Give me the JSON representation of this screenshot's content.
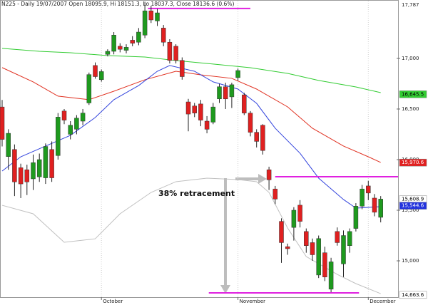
{
  "chart_data": {
    "type": "candlestick",
    "title": "N225 - Daily 19/07/2007 Open 18095.9, Hi 18151.3, Lo 18037.3, Close 18136.6 (0.6%)",
    "top_label": "17,787",
    "annotation": "38% retracement",
    "categories": [
      null,
      null,
      null,
      null,
      null,
      null,
      null,
      null,
      null,
      null,
      null,
      null,
      null,
      null,
      null,
      null,
      "October",
      null,
      null,
      null,
      null,
      null,
      null,
      null,
      null,
      null,
      null,
      null,
      null,
      null,
      null,
      null,
      null,
      null,
      null,
      null,
      null,
      null,
      "November",
      null,
      null,
      null,
      null,
      null,
      null,
      null,
      null,
      null,
      null,
      null,
      null,
      null,
      null,
      null,
      null,
      null,
      null,
      null,
      null,
      "December",
      null,
      null
    ],
    "open": [
      16520,
      16030,
      16100,
      15920,
      15900,
      15810,
      15830,
      15820,
      16100,
      16040,
      16480,
      16250,
      16300,
      16380,
      16560,
      16930,
      16790,
      17040,
      17070,
      17120,
      17080,
      17180,
      17160,
      17230,
      17470,
      17370,
      17300,
      17160,
      17120,
      16980,
      16570,
      16530,
      16550,
      16380,
      16370,
      16600,
      16720,
      16620,
      16810,
      16640,
      16460,
      16270,
      16340,
      15900,
      15710,
      15390,
      15140,
      15330,
      15550,
      15290,
      15180,
      14860,
      15080,
      14720,
      15290,
      14970,
      15150,
      15320,
      15540,
      15740,
      15620,
      15430
    ],
    "high": [
      16590,
      16300,
      16150,
      15960,
      15950,
      16050,
      16060,
      16160,
      16180,
      16460,
      16500,
      16380,
      16440,
      16500,
      16860,
      16960,
      16890,
      17090,
      17260,
      17150,
      17140,
      17220,
      17300,
      17560,
      17520,
      17490,
      17330,
      17190,
      17140,
      17010,
      16600,
      16560,
      16590,
      16430,
      16560,
      16750,
      16760,
      16760,
      16900,
      16660,
      16480,
      16300,
      16350,
      15930,
      15740,
      15420,
      15170,
      15530,
      15600,
      15320,
      15220,
      15250,
      15140,
      15030,
      15330,
      15300,
      15320,
      15570,
      15750,
      15790,
      15660,
      15640
    ],
    "low": [
      16130,
      15900,
      15640,
      15620,
      15650,
      15700,
      15780,
      15760,
      15780,
      16000,
      16350,
      16200,
      16250,
      16340,
      16540,
      16800,
      16770,
      17020,
      17040,
      17060,
      17050,
      17120,
      17130,
      17200,
      17350,
      17320,
      17120,
      16950,
      16950,
      16790,
      16280,
      16420,
      16330,
      16260,
      16350,
      16560,
      16500,
      16510,
      16780,
      16440,
      16230,
      16120,
      16050,
      15700,
      15560,
      14980,
      15060,
      15200,
      15330,
      15080,
      15000,
      14830,
      14800,
      14690,
      15150,
      14840,
      15080,
      15290,
      15510,
      15600,
      15440,
      15380
    ],
    "close": [
      16200,
      16260,
      15780,
      15760,
      15780,
      15970,
      16000,
      16130,
      15820,
      16420,
      16390,
      16340,
      16410,
      16460,
      16840,
      16820,
      16870,
      17070,
      17230,
      17090,
      17110,
      17150,
      17260,
      17470,
      17380,
      17450,
      17160,
      16980,
      16980,
      16820,
      16450,
      16460,
      16390,
      16300,
      16520,
      16720,
      16600,
      16740,
      16880,
      16460,
      16270,
      16180,
      16090,
      15800,
      15610,
      15180,
      15120,
      15500,
      15390,
      15150,
      15060,
      15220,
      14840,
      14990,
      15180,
      15250,
      15290,
      15540,
      15710,
      15670,
      15480,
      15610
    ],
    "up_color": "#1e9a1e",
    "down_color": "#e02020",
    "lines": [
      {
        "color": "#33cc33",
        "x": [
          0,
          6,
          11,
          17,
          23,
          28,
          34,
          40,
          46,
          51,
          57,
          61
        ],
        "values": [
          17099,
          17070,
          17056,
          17028,
          17014,
          16979,
          16944,
          16908,
          16852,
          16782,
          16718,
          16662
        ]
      },
      {
        "color": "#e03020",
        "x": [
          0,
          5,
          9,
          14,
          18,
          23,
          28,
          32,
          37,
          41,
          46,
          50,
          55,
          59,
          61
        ],
        "values": [
          16909,
          16768,
          16627,
          16592,
          16676,
          16789,
          16873,
          16838,
          16803,
          16697,
          16521,
          16310,
          16134,
          16028,
          15972
        ]
      },
      {
        "color": "#3344dd",
        "x": [
          0,
          3,
          7,
          11,
          15,
          18,
          22,
          25,
          27,
          31,
          34,
          38,
          41,
          44,
          48,
          51,
          55,
          57,
          61
        ],
        "values": [
          15887,
          16028,
          16134,
          16240,
          16416,
          16592,
          16732,
          16873,
          16930,
          16873,
          16768,
          16697,
          16556,
          16310,
          16063,
          15817,
          15606,
          15521,
          15535
        ]
      },
      {
        "color": "#c0c0c0",
        "x": [
          0,
          5,
          10,
          15,
          19,
          24,
          28,
          33,
          38,
          41,
          43,
          46,
          49,
          54,
          57,
          61
        ],
        "values": [
          15549,
          15465,
          15183,
          15218,
          15465,
          15676,
          15782,
          15817,
          15803,
          15782,
          15676,
          15324,
          15042,
          14866,
          14775,
          14676
        ]
      }
    ],
    "levels": [
      {
        "value": 17493,
        "x": [
          23.5,
          40
        ]
      },
      {
        "value": 15831,
        "x": [
          44,
          63.8
        ]
      },
      {
        "value": 14683,
        "x": [
          33.3,
          57.5
        ]
      }
    ],
    "level_color": "#e020e0",
    "ylim": [
      14620,
      17577
    ],
    "yticks": [
      {
        "value": 17000,
        "label": "17,000"
      },
      {
        "value": 16500,
        "label": "16,500"
      },
      {
        "value": 16000,
        "label": "16,000"
      },
      {
        "value": 15500,
        "label": "15,500"
      },
      {
        "value": 15000,
        "label": "15,000"
      }
    ],
    "last_values": [
      {
        "value": 16645.5,
        "label": "16,645.5",
        "color": "#33cc33",
        "text_color": "#000000"
      },
      {
        "value": 15970.6,
        "label": "15,970.6",
        "color": "#e02020",
        "text_color": "#ffffff"
      },
      {
        "value": 15608.9,
        "label": "15,608.9",
        "color": "#ffffff",
        "text_color": "#000000"
      },
      {
        "value": 15544.6,
        "label": "15,544.6",
        "color": "#2233dd",
        "text_color": "#ffffff"
      },
      {
        "value": 14663.6,
        "label": "14,663.6",
        "color": "#ffffff",
        "text_color": "#000000"
      }
    ]
  }
}
